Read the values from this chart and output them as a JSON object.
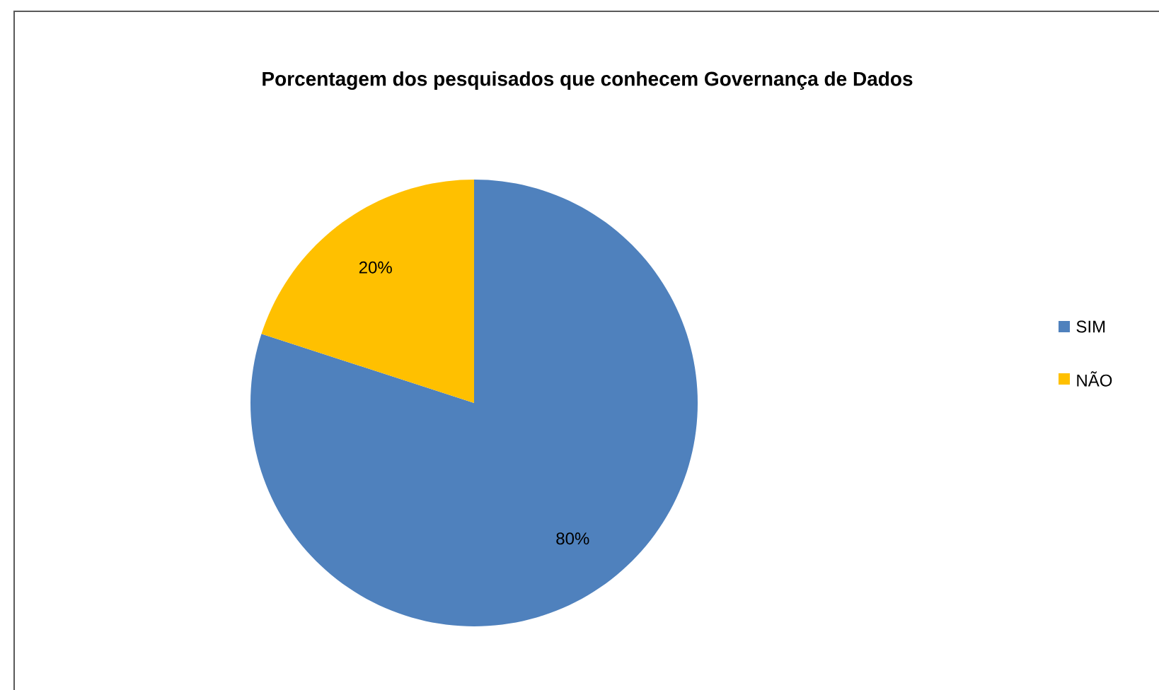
{
  "chart_data": {
    "type": "pie",
    "title": "Porcentagem dos pesquisados que conhecem Governança de Dados",
    "categories": [
      "SIM",
      "NÃO"
    ],
    "values": [
      80,
      20
    ],
    "colors": [
      "#4f81bd",
      "#ffc000"
    ],
    "value_labels": [
      "80%",
      "20%"
    ],
    "legend": "right"
  }
}
